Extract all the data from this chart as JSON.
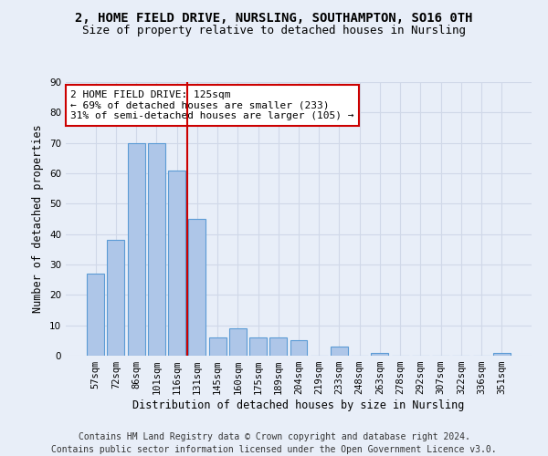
{
  "title": "2, HOME FIELD DRIVE, NURSLING, SOUTHAMPTON, SO16 0TH",
  "subtitle": "Size of property relative to detached houses in Nursling",
  "xlabel": "Distribution of detached houses by size in Nursling",
  "ylabel": "Number of detached properties",
  "categories": [
    "57sqm",
    "72sqm",
    "86sqm",
    "101sqm",
    "116sqm",
    "131sqm",
    "145sqm",
    "160sqm",
    "175sqm",
    "189sqm",
    "204sqm",
    "219sqm",
    "233sqm",
    "248sqm",
    "263sqm",
    "278sqm",
    "292sqm",
    "307sqm",
    "322sqm",
    "336sqm",
    "351sqm"
  ],
  "values": [
    27,
    38,
    70,
    70,
    61,
    45,
    6,
    9,
    6,
    6,
    5,
    0,
    3,
    0,
    1,
    0,
    0,
    0,
    0,
    0,
    1
  ],
  "bar_color": "#aec6e8",
  "bar_edge_color": "#5b9bd5",
  "vline_x": 4.5,
  "vline_color": "#cc0000",
  "annotation_line1": "2 HOME FIELD DRIVE: 125sqm",
  "annotation_line2": "← 69% of detached houses are smaller (233)",
  "annotation_line3": "31% of semi-detached houses are larger (105) →",
  "annotation_box_color": "#ffffff",
  "annotation_box_edge_color": "#cc0000",
  "ylim": [
    0,
    90
  ],
  "yticks": [
    0,
    10,
    20,
    30,
    40,
    50,
    60,
    70,
    80,
    90
  ],
  "grid_color": "#d0d8e8",
  "bg_color": "#e8eef8",
  "footer": "Contains HM Land Registry data © Crown copyright and database right 2024.\nContains public sector information licensed under the Open Government Licence v3.0.",
  "title_fontsize": 10,
  "subtitle_fontsize": 9,
  "axis_label_fontsize": 8.5,
  "tick_fontsize": 7.5,
  "annotation_fontsize": 8,
  "footer_fontsize": 7
}
